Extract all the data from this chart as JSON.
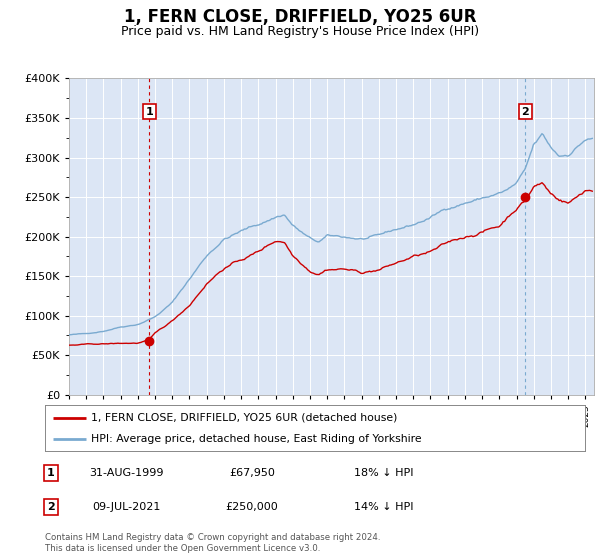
{
  "title": "1, FERN CLOSE, DRIFFIELD, YO25 6UR",
  "subtitle": "Price paid vs. HM Land Registry's House Price Index (HPI)",
  "footer": "Contains HM Land Registry data © Crown copyright and database right 2024.\nThis data is licensed under the Open Government Licence v3.0.",
  "legend_line1": "1, FERN CLOSE, DRIFFIELD, YO25 6UR (detached house)",
  "legend_line2": "HPI: Average price, detached house, East Riding of Yorkshire",
  "transaction1": {
    "label": "1",
    "date": "31-AUG-1999",
    "price": "£67,950",
    "note": "18% ↓ HPI",
    "x_year": 1999.67,
    "y_val": 67950
  },
  "transaction2": {
    "label": "2",
    "date": "09-JUL-2021",
    "price": "£250,000",
    "note": "14% ↓ HPI",
    "x_year": 2021.52,
    "y_val": 250000
  },
  "red_color": "#cc0000",
  "blue_color": "#7aaad0",
  "background_color": "#dce6f5",
  "ylim": [
    0,
    400000
  ],
  "xlim_min": 1995.0,
  "xlim_max": 2025.5,
  "title_fontsize": 12,
  "subtitle_fontsize": 9
}
